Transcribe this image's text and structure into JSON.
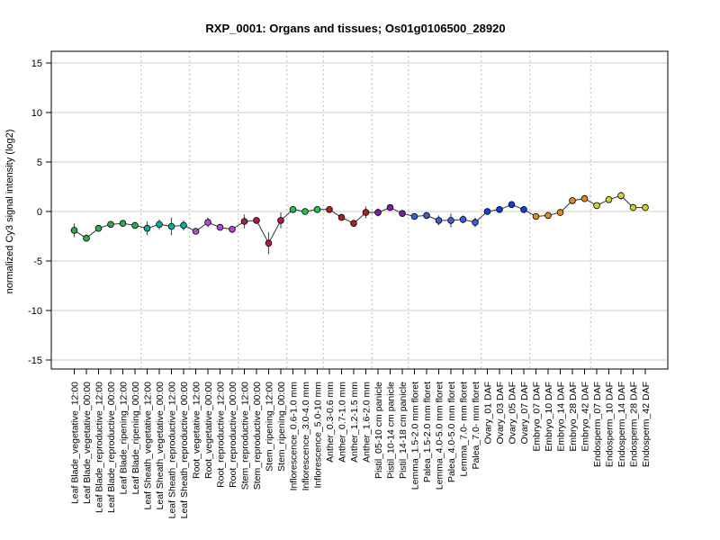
{
  "chart_data": {
    "type": "line",
    "title": "RXP_0001: Organs and tissues; Os01g0106500_28920",
    "ylabel": "normalized Cy3 signal intensity (log2)",
    "xlabel": "",
    "ylim": [
      -16,
      16
    ],
    "yticks": [
      15,
      10,
      5,
      0,
      -5,
      -10,
      -15
    ],
    "grid": true,
    "categories": [
      "Leaf Blade_vegetative_12:00",
      "Leaf Blade_vegetative_00:00",
      "Leaf Blade_reproductive_12:00",
      "Leaf Blade_reproductive_00:00",
      "Leaf Blade_ripening_12:00",
      "Leaf Blade_ripening_00:00",
      "Leaf Sheath_vegetative_12:00",
      "Leaf Sheath_vegetative_00:00",
      "Leaf Sheath_reproductive_12:00",
      "Leaf Sheath_reproductive_00:00",
      "Root_vegetative_12:00",
      "Root_vegetative_00:00",
      "Root_reproductive_12:00",
      "Root_reproductive_00:00",
      "Stem_reproductive_12:00",
      "Stem_reproductive_00:00",
      "Stem_ripening_12:00",
      "Stem_ripening_00:00",
      "Inflorescence_0.6-1.0 mm",
      "Inflorescence_3.0-4.0 mm",
      "Inflorescence_5.0-10 mm",
      "Anther_0.3-0.6 mm",
      "Anther_0.7-1.0 mm",
      "Anther_1.2-1.5 mm",
      "Anther_1.6-2.0 mm",
      "Pistil_05-10 cm panicle",
      "Pistil_10-14 cm panicle",
      "Pistil_14-18 cm panicle",
      "Lemma_1.5-2.0 mm floret",
      "Palea_1.5-2.0 mm floret",
      "Lemma_4.0-5.0 mm floret",
      "Palea_4.0-5.0 mm floret",
      "Lemma_7.0- mm floret",
      "Palea_7.0- mm floret",
      "Ovary_01 DAF",
      "Ovary_03 DAF",
      "Ovary_05 DAF",
      "Ovary_07 DAF",
      "Embryo_07 DAF",
      "Embryo_10 DAF",
      "Embryo_14 DAF",
      "Embryo_28 DAF",
      "Embryo_42 DAF",
      "Endosperm_07 DAF",
      "Endosperm_10 DAF",
      "Endosperm_14 DAF",
      "Endosperm_28 DAF",
      "Endosperm_42 DAF"
    ],
    "values": [
      -1.9,
      -2.7,
      -1.7,
      -1.3,
      -1.2,
      -1.4,
      -1.7,
      -1.3,
      -1.5,
      -1.4,
      -2.0,
      -1.1,
      -1.6,
      -1.8,
      -1.0,
      -0.9,
      -3.2,
      -0.9,
      0.2,
      0.0,
      0.2,
      0.2,
      -0.6,
      -1.2,
      -0.1,
      -0.1,
      0.4,
      -0.2,
      -0.5,
      -0.4,
      -0.9,
      -0.9,
      -0.8,
      -1.1,
      0.0,
      0.2,
      0.7,
      0.2,
      -0.5,
      -0.4,
      -0.1,
      1.1,
      1.3,
      0.6,
      1.2,
      1.6,
      0.4,
      0.4
    ],
    "error": [
      0.7,
      0.3,
      0.3,
      0.2,
      0.2,
      0.2,
      0.7,
      0.5,
      0.9,
      0.5,
      0.3,
      0.5,
      0.2,
      0.2,
      0.7,
      0.2,
      1.1,
      0.8,
      0.2,
      0.2,
      0.2,
      0.2,
      0.2,
      0.3,
      0.6,
      0.4,
      0.2,
      0.2,
      0.3,
      0.2,
      0.5,
      0.7,
      0.4,
      0.5,
      0.2,
      0.2,
      0.2,
      0.2,
      0.2,
      0.3,
      0.2,
      0.2,
      0.2,
      0.2,
      0.3,
      0.4,
      0.2,
      0.2
    ],
    "point_colors": [
      "#32a852",
      "#32a852",
      "#32a852",
      "#32a852",
      "#32a852",
      "#32a852",
      "#00b3a0",
      "#00b3a0",
      "#00b3a0",
      "#00b3a0",
      "#b04ad0",
      "#b04ad0",
      "#b04ad0",
      "#b04ad0",
      "#b01c4a",
      "#b01c4a",
      "#b01c4a",
      "#b01c4a",
      "#22c24a",
      "#22c24a",
      "#22c24a",
      "#b02020",
      "#b02020",
      "#b02020",
      "#b02020",
      "#7a1ea8",
      "#7a1ea8",
      "#7a1ea8",
      "#3a5fd8",
      "#3a5fd8",
      "#3a5fd8",
      "#3a5fd8",
      "#3a5fd8",
      "#3a5fd8",
      "#1040e0",
      "#1040e0",
      "#1040e0",
      "#1040e0",
      "#e08a20",
      "#e08a20",
      "#e08a20",
      "#e08a20",
      "#e08a20",
      "#d0d030",
      "#d0d030",
      "#d0d030",
      "#d0d030",
      "#d0d030"
    ],
    "group_dividers_after": [
      5,
      9,
      13,
      17,
      20,
      24,
      27,
      33,
      37,
      42
    ]
  }
}
